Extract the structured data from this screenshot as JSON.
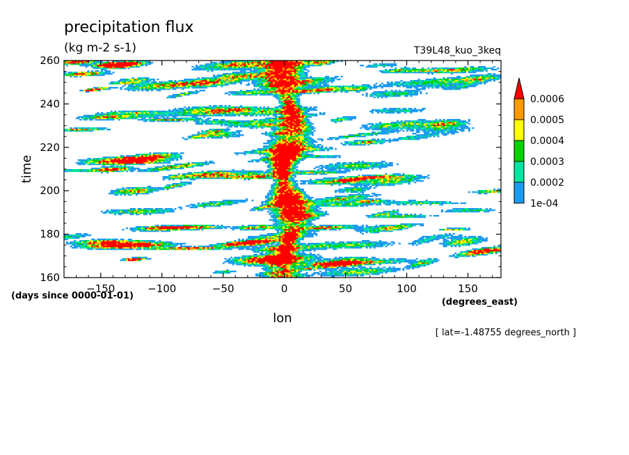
{
  "chart_data": {
    "type": "heatmap",
    "title": "precipitation flux",
    "units": "(kg m-2 s-1)",
    "run_label": "T39L48_kuo_3keq",
    "xlabel": "lon",
    "x_units": "(degrees_east)",
    "ylabel": "time",
    "y_units": "(days since 0000-01-01)",
    "slice_label": "[ lat=-1.48755 degrees_north ]",
    "xlim": [
      -180,
      177
    ],
    "ylim": [
      160,
      260
    ],
    "x_ticks": [
      -150,
      -100,
      -50,
      0,
      50,
      100,
      150
    ],
    "x_tick_labels": [
      "−150",
      "−100",
      "−50",
      "0",
      "50",
      "100",
      "150"
    ],
    "y_ticks": [
      160,
      180,
      200,
      220,
      240,
      260
    ],
    "y_tick_labels": [
      "160",
      "180",
      "200",
      "220",
      "240",
      "260"
    ],
    "colorbar": {
      "labels": [
        "1e-04",
        "0.0002",
        "0.0003",
        "0.0004",
        "0.0005",
        "0.0006"
      ],
      "bins": [
        {
          "min": 0.0001,
          "max": 0.0002,
          "color": "#1e9bf0"
        },
        {
          "min": 0.0002,
          "max": 0.0003,
          "color": "#00e6a0"
        },
        {
          "min": 0.0003,
          "max": 0.0004,
          "color": "#00d200"
        },
        {
          "min": 0.0004,
          "max": 0.0005,
          "color": "#ffff00"
        },
        {
          "min": 0.0005,
          "max": 0.0006,
          "color": "#ff9900"
        },
        {
          "min": 0.0006,
          "max": null,
          "color": "#ff0000"
        }
      ]
    },
    "colors": {
      "level_1": "#1e9bf0",
      "level_2": "#00e6a0",
      "level_3": "#00d200",
      "level_4": "#ffff00",
      "level_5": "#ff9900",
      "level_6": "#ff0000"
    },
    "grid": false,
    "legend_position": "right"
  }
}
